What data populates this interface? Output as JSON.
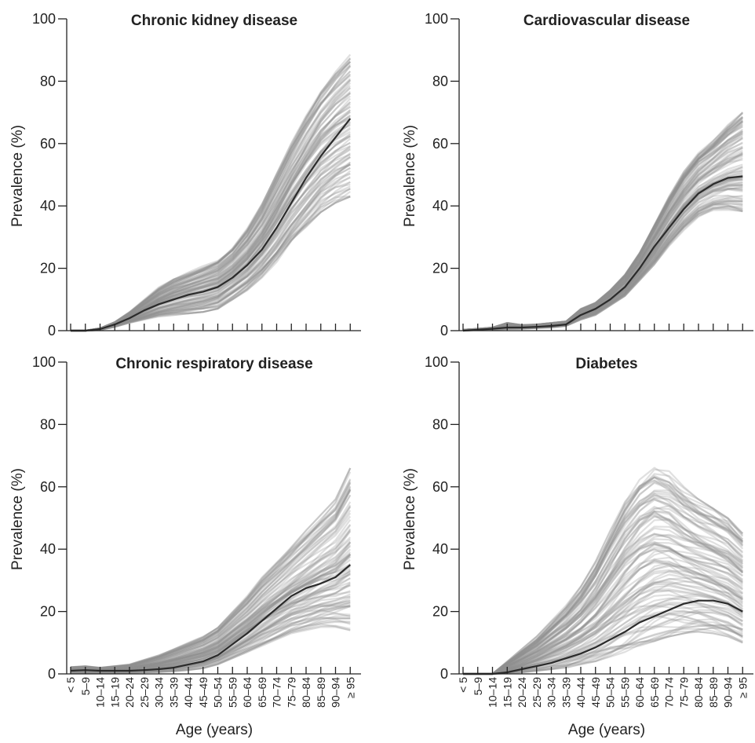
{
  "figure": {
    "y_axis_label": "Prevalence (%)",
    "x_axis_label": "Age (years)"
  },
  "colors": {
    "mean_line": "#2b2b2b",
    "country_lines": "#8f8f8f",
    "axis": "#222222"
  },
  "chart_data": [
    {
      "type": "line",
      "title": "Chronic kidney disease",
      "ylabel": "Prevalence (%)",
      "xlabel": "",
      "ylim": [
        0,
        100
      ],
      "yticks": [
        0,
        20,
        40,
        60,
        80,
        100
      ],
      "categories": [
        "< 5",
        "5–9",
        "10–14",
        "15–19",
        "20–24",
        "25–29",
        "30–34",
        "35–39",
        "40–44",
        "45–49",
        "50–54",
        "55–59",
        "60–64",
        "65–69",
        "70–74",
        "75–79",
        "80–84",
        "85–89",
        "90–94",
        "≥ 95"
      ],
      "show_category_labels": false,
      "grid": false,
      "mean_series": {
        "values": [
          0,
          0,
          0.5,
          2,
          4,
          6.5,
          8.5,
          10,
          11.5,
          12.5,
          14,
          17,
          21,
          26,
          33,
          41,
          49,
          56,
          62,
          68
        ]
      },
      "spread_series": {
        "count": 100,
        "low": [
          0,
          0,
          0.2,
          1.2,
          2.5,
          3.5,
          4.5,
          5,
          5.5,
          6,
          7,
          10,
          13,
          17,
          22,
          28,
          33,
          38,
          41,
          43
        ],
        "high": [
          0,
          0,
          0.8,
          2.8,
          6,
          10,
          14,
          17,
          19,
          21,
          23,
          27,
          33,
          41,
          51,
          61,
          70,
          78,
          84,
          89
        ]
      }
    },
    {
      "type": "line",
      "title": "Cardiovascular disease",
      "ylabel": "Prevalence (%)",
      "xlabel": "",
      "ylim": [
        0,
        100
      ],
      "yticks": [
        0,
        20,
        40,
        60,
        80,
        100
      ],
      "categories": [
        "< 5",
        "5–9",
        "10–14",
        "15–19",
        "20–24",
        "25–29",
        "30–34",
        "35–39",
        "40–44",
        "45–49",
        "50–54",
        "55–59",
        "60–64",
        "65–69",
        "70–74",
        "75–79",
        "80–84",
        "85–89",
        "90–94",
        "≥ 95"
      ],
      "show_category_labels": false,
      "grid": false,
      "mean_series": {
        "values": [
          0,
          0.3,
          0.6,
          1,
          1,
          1.2,
          1.5,
          2,
          5,
          7,
          10,
          14,
          20,
          27,
          33,
          39,
          44,
          47,
          49,
          49.5
        ]
      },
      "spread_series": {
        "count": 100,
        "low": [
          0,
          0.2,
          0.3,
          0.5,
          0.6,
          0.8,
          1,
          1.5,
          3.5,
          5,
          8,
          11,
          16,
          21,
          27,
          32,
          36,
          38,
          38,
          37
        ],
        "high": [
          0.3,
          0.6,
          1,
          2.5,
          1.8,
          2,
          2.5,
          3,
          7,
          9,
          13,
          18,
          25,
          34,
          43,
          51,
          57,
          61,
          66,
          70
        ]
      }
    },
    {
      "type": "line",
      "title": "Chronic respiratory disease",
      "ylabel": "Prevalence (%)",
      "xlabel": "Age (years)",
      "ylim": [
        0,
        100
      ],
      "yticks": [
        0,
        20,
        40,
        60,
        80,
        100
      ],
      "categories": [
        "< 5",
        "5–9",
        "10–14",
        "15–19",
        "20–24",
        "25–29",
        "30–34",
        "35–39",
        "40–44",
        "45–49",
        "50–54",
        "55–59",
        "60–64",
        "65–69",
        "70–74",
        "75–79",
        "80–84",
        "85–89",
        "90–94",
        "≥ 95"
      ],
      "show_category_labels": true,
      "grid": false,
      "mean_series": {
        "values": [
          1,
          1.2,
          1,
          1,
          1,
          1.2,
          1.5,
          2,
          3,
          4,
          6,
          9.5,
          13,
          17,
          21,
          25,
          27.5,
          29,
          31,
          35
        ]
      },
      "spread_series": {
        "count": 100,
        "low": [
          0.2,
          0.3,
          0.2,
          0.3,
          0.3,
          0.5,
          0.6,
          0.8,
          1.2,
          1.8,
          3,
          5,
          7,
          9,
          11,
          13,
          14,
          15,
          15,
          14
        ],
        "high": [
          2.2,
          2.5,
          2,
          2.5,
          3,
          4.5,
          6,
          8,
          10,
          12,
          15,
          20,
          25,
          31,
          36,
          41,
          46,
          51,
          56,
          66
        ]
      }
    },
    {
      "type": "line",
      "title": "Diabetes",
      "ylabel": "Prevalence (%)",
      "xlabel": "Age (years)",
      "ylim": [
        0,
        100
      ],
      "yticks": [
        0,
        20,
        40,
        60,
        80,
        100
      ],
      "categories": [
        "< 5",
        "5–9",
        "10–14",
        "15–19",
        "20–24",
        "25–29",
        "30–34",
        "35–39",
        "40–44",
        "45–49",
        "50–54",
        "55–59",
        "60–64",
        "65–69",
        "70–74",
        "75–79",
        "80–84",
        "85–89",
        "90–94",
        "≥ 95"
      ],
      "show_category_labels": true,
      "grid": false,
      "mean_series": {
        "values": [
          0,
          0,
          0,
          0.5,
          1.5,
          2.5,
          3.5,
          5,
          6.5,
          8.5,
          11,
          13.5,
          16.5,
          18.5,
          20.5,
          22.5,
          23.5,
          23.5,
          22.5,
          20
        ]
      },
      "spread_series": {
        "count": 100,
        "low": [
          0,
          0,
          0,
          0.2,
          0.5,
          1,
          1.5,
          2,
          3,
          4,
          5.5,
          7,
          9,
          10.5,
          12,
          13,
          13.5,
          13,
          12,
          10
        ],
        "high": [
          0,
          0,
          0,
          4,
          8,
          12,
          17,
          22,
          28,
          36,
          46,
          56,
          63,
          67,
          65,
          60,
          56,
          53,
          50,
          45
        ]
      }
    }
  ]
}
